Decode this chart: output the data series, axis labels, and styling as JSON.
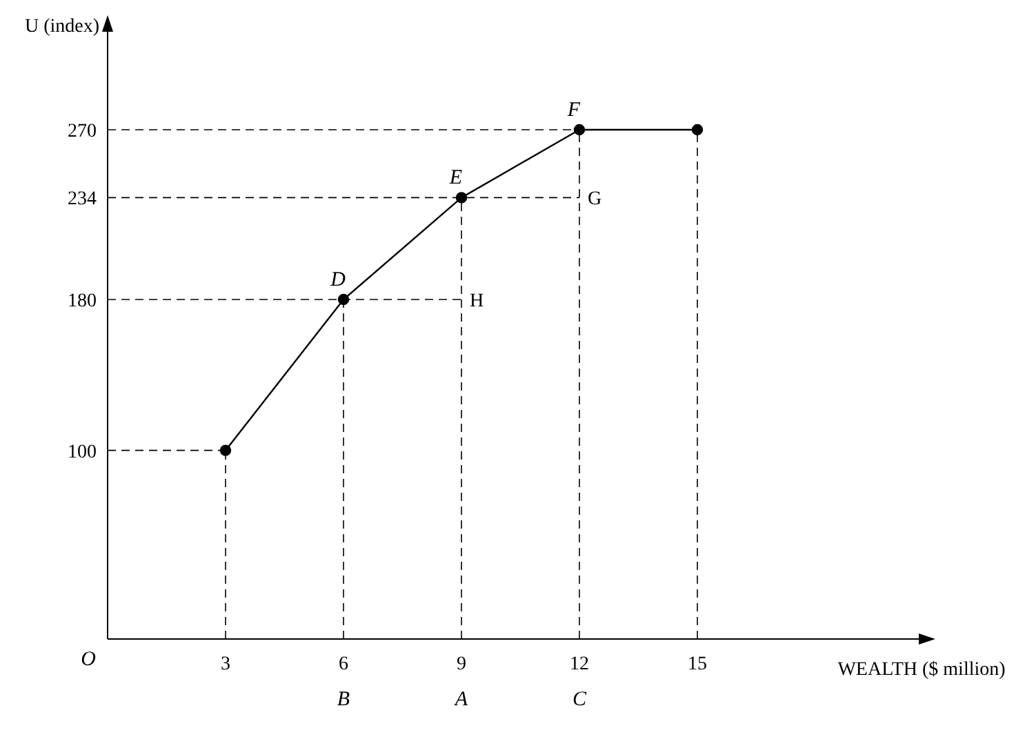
{
  "chart_data": {
    "type": "line",
    "xlabel": "WEALTH ($ million)",
    "ylabel": "U (index)",
    "x": [
      3,
      6,
      9,
      12,
      15
    ],
    "series": [
      {
        "color": "#000000",
        "values": [
          100,
          180,
          234,
          270,
          270
        ]
      }
    ],
    "xlim": [
      0,
      20
    ],
    "ylim": [
      0,
      300
    ],
    "xticks": [
      3,
      6,
      9,
      12,
      15
    ],
    "yticks": [
      100,
      180,
      234,
      270
    ],
    "marker": "circle",
    "line_style": "solid",
    "ref_lines": [
      {
        "axis": "y",
        "value": 100,
        "color": "#000000",
        "line_style": "dashed"
      },
      {
        "axis": "y",
        "value": 180,
        "color": "#000000",
        "line_style": "dashed"
      },
      {
        "axis": "y",
        "value": 234,
        "color": "#000000",
        "line_style": "dashed"
      },
      {
        "axis": "y",
        "value": 270,
        "color": "#000000",
        "line_style": "dashed"
      },
      {
        "axis": "x",
        "value": 3,
        "color": "#000000",
        "line_style": "dashed"
      },
      {
        "axis": "x",
        "value": 6,
        "color": "#000000",
        "line_style": "dashed"
      },
      {
        "axis": "x",
        "value": 9,
        "color": "#000000",
        "line_style": "dashed"
      },
      {
        "axis": "x",
        "value": 12,
        "color": "#000000",
        "line_style": "dashed"
      },
      {
        "axis": "x",
        "value": 15,
        "color": "#000000",
        "line_style": "dashed"
      }
    ],
    "annotations": [
      "O",
      {
        "text": "D",
        "x": 6,
        "y": 180
      },
      {
        "text": "E",
        "x": 9,
        "y": 234
      },
      {
        "text": "F",
        "x": 12,
        "y": 270
      },
      {
        "text": "G",
        "x": 12,
        "y": 234
      },
      {
        "text": "H",
        "x": 9,
        "y": 180
      },
      {
        "text": "B",
        "x": 6,
        "y": 0
      },
      {
        "text": "A",
        "x": 9,
        "y": 0
      },
      {
        "text": "C",
        "x": 12,
        "y": 0
      }
    ]
  }
}
